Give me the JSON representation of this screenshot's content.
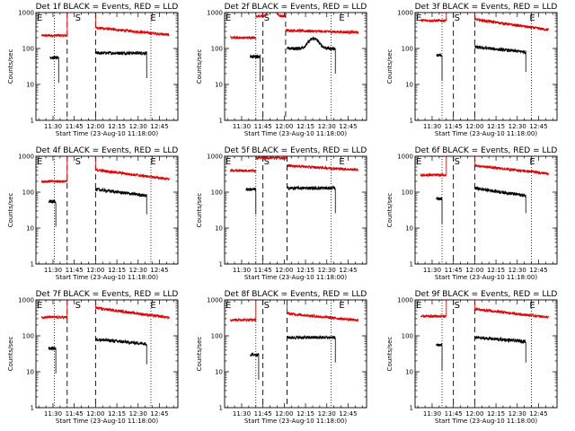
{
  "chart_data": {
    "type": "line",
    "layout": "3x3 grid",
    "common": {
      "xlabel": "Start Time (23-Aug-10 11:18:00)",
      "ylabel": "Counts/sec",
      "x_ticks": [
        "11:30",
        "11:45",
        "12:00",
        "12:15",
        "12:30",
        "12:45"
      ],
      "x_range": [
        "11:18",
        "12:58"
      ],
      "y_scale": "log",
      "y_range": [
        1,
        1000
      ],
      "y_ticks": [
        "1",
        "10",
        "100",
        "1000"
      ],
      "event_letters": [
        "E",
        "S",
        "E"
      ],
      "event_times": {
        "E_start": "11:18",
        "S": "11:45",
        "E_end": "12:38"
      },
      "series_colors": {
        "events": "#000000",
        "lld": "#e00000"
      }
    },
    "panels": [
      {
        "title": "Det 1f BLACK = Events, RED = LLD",
        "dotted_lines": [
          "11:31",
          "12:39"
        ],
        "dashed_lines": [
          "11:40",
          "12:00"
        ],
        "lld": {
          "segments": [
            {
              "start": "11:22",
              "end": "11:40",
              "level": 230
            },
            {
              "start": "12:00",
              "end": "12:52",
              "level": 380,
              "decay_to": 240
            }
          ],
          "gap_level": 1000
        },
        "events": {
          "segments": [
            {
              "start": "11:28",
              "end": "11:34",
              "level": 55
            },
            {
              "start": "12:00",
              "end": "12:36",
              "level": 75
            }
          ]
        }
      },
      {
        "title": "Det 2f BLACK = Events, RED = LLD",
        "dotted_lines": [
          "11:40",
          "12:33"
        ],
        "dashed_lines": [
          "11:45",
          "12:01"
        ],
        "lld": {
          "segments": [
            {
              "start": "11:22",
              "end": "11:40",
              "level": 200
            },
            {
              "start": "11:40",
              "end": "12:01",
              "level": 800,
              "bump": true
            },
            {
              "start": "12:01",
              "end": "12:52",
              "level": 320,
              "decay_to": 280
            }
          ]
        },
        "events": {
          "segments": [
            {
              "start": "11:36",
              "end": "11:43",
              "level": 60
            },
            {
              "start": "12:02",
              "end": "12:36",
              "level": 100,
              "bump": true
            }
          ]
        }
      },
      {
        "title": "Det 3f BLACK = Events, RED = LLD",
        "dotted_lines": [
          "11:37",
          "12:40"
        ],
        "dashed_lines": [
          "11:45",
          "12:00"
        ],
        "lld": {
          "segments": [
            {
              "start": "11:22",
              "end": "11:40",
              "level": 600
            },
            {
              "start": "12:00",
              "end": "12:52",
              "level": 650,
              "decay_to": 330
            }
          ],
          "gap_level": 1000
        },
        "events": {
          "segments": [
            {
              "start": "11:33",
              "end": "11:37",
              "level": 65
            },
            {
              "start": "12:00",
              "end": "12:36",
              "level": 110,
              "decay_to": 80
            }
          ]
        }
      },
      {
        "title": "Det 4f BLACK = Events, RED = LLD",
        "dotted_lines": [
          "11:31",
          "12:39"
        ],
        "dashed_lines": [
          "11:40",
          "12:00"
        ],
        "lld": {
          "segments": [
            {
              "start": "11:22",
              "end": "11:40",
              "level": 200
            },
            {
              "start": "12:00",
              "end": "12:52",
              "level": 420,
              "decay_to": 230
            }
          ],
          "gap_level": 1000
        },
        "events": {
          "segments": [
            {
              "start": "11:27",
              "end": "11:32",
              "level": 55
            },
            {
              "start": "12:00",
              "end": "12:36",
              "level": 120,
              "decay_to": 80
            }
          ]
        }
      },
      {
        "title": "Det 5f BLACK = Events, RED = LLD",
        "dotted_lines": [
          "11:40",
          "12:33"
        ],
        "dashed_lines": [
          "11:45",
          "12:02"
        ],
        "lld": {
          "segments": [
            {
              "start": "11:22",
              "end": "11:40",
              "level": 400
            },
            {
              "start": "11:40",
              "end": "12:02",
              "level": 900
            },
            {
              "start": "12:02",
              "end": "12:52",
              "level": 550,
              "decay_to": 420
            }
          ]
        },
        "events": {
          "segments": [
            {
              "start": "11:33",
              "end": "11:40",
              "level": 120
            },
            {
              "start": "12:02",
              "end": "12:36",
              "level": 130
            }
          ]
        }
      },
      {
        "title": "Det 6f BLACK = Events, RED = LLD",
        "dotted_lines": [
          "11:37",
          "12:40"
        ],
        "dashed_lines": [
          "11:45",
          "12:00"
        ],
        "lld": {
          "segments": [
            {
              "start": "11:22",
              "end": "11:40",
              "level": 300
            },
            {
              "start": "12:00",
              "end": "12:52",
              "level": 550,
              "decay_to": 330
            }
          ],
          "gap_level": 1000
        },
        "events": {
          "segments": [
            {
              "start": "11:33",
              "end": "11:37",
              "level": 65
            },
            {
              "start": "12:00",
              "end": "12:36",
              "level": 130,
              "decay_to": 80
            }
          ]
        }
      },
      {
        "title": "Det 7f BLACK = Events, RED = LLD",
        "dotted_lines": [
          "11:31",
          "12:39"
        ],
        "dashed_lines": [
          "11:40",
          "12:00"
        ],
        "lld": {
          "segments": [
            {
              "start": "11:22",
              "end": "11:40",
              "level": 330
            },
            {
              "start": "12:00",
              "end": "12:52",
              "level": 600,
              "decay_to": 320
            }
          ],
          "gap_level": 1000
        },
        "events": {
          "segments": [
            {
              "start": "11:27",
              "end": "11:32",
              "level": 45
            },
            {
              "start": "12:00",
              "end": "12:36",
              "level": 80,
              "decay_to": 60
            }
          ]
        }
      },
      {
        "title": "Det 8f BLACK = Events, RED = LLD",
        "dotted_lines": [
          "11:40",
          "12:33"
        ],
        "dashed_lines": [
          "11:45",
          "12:02"
        ],
        "lld": {
          "segments": [
            {
              "start": "11:22",
              "end": "11:40",
              "level": 280
            },
            {
              "start": "12:02",
              "end": "12:52",
              "level": 420,
              "decay_to": 270
            }
          ],
          "gap_level": 1000
        },
        "events": {
          "segments": [
            {
              "start": "11:36",
              "end": "11:42",
              "level": 30
            },
            {
              "start": "12:02",
              "end": "12:36",
              "level": 90
            }
          ]
        }
      },
      {
        "title": "Det 9f BLACK = Events, RED = LLD",
        "dotted_lines": [
          "11:37",
          "12:40"
        ],
        "dashed_lines": [
          "11:45",
          "12:00"
        ],
        "lld": {
          "segments": [
            {
              "start": "11:22",
              "end": "11:40",
              "level": 350
            },
            {
              "start": "12:00",
              "end": "12:52",
              "level": 550,
              "decay_to": 330
            }
          ],
          "gap_level": 1000
        },
        "events": {
          "segments": [
            {
              "start": "11:33",
              "end": "11:37",
              "level": 55
            },
            {
              "start": "12:00",
              "end": "12:36",
              "level": 90,
              "decay_to": 70
            }
          ]
        }
      }
    ]
  }
}
